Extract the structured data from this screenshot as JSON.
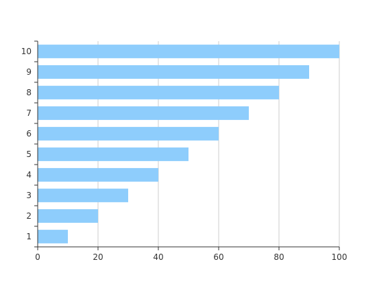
{
  "chart_data": {
    "type": "bar",
    "orientation": "horizontal",
    "title": "",
    "xlabel": "",
    "ylabel": "",
    "categories": [
      "1",
      "2",
      "3",
      "4",
      "5",
      "6",
      "7",
      "8",
      "9",
      "10"
    ],
    "values": [
      10,
      20,
      30,
      40,
      50,
      60,
      70,
      80,
      90,
      100
    ],
    "xlim": [
      0,
      100
    ],
    "x_ticks": [
      "0",
      "20",
      "40",
      "60",
      "80",
      "100"
    ],
    "grid": "vertical",
    "legend": "none",
    "bar_color": "#8ecdfc"
  }
}
